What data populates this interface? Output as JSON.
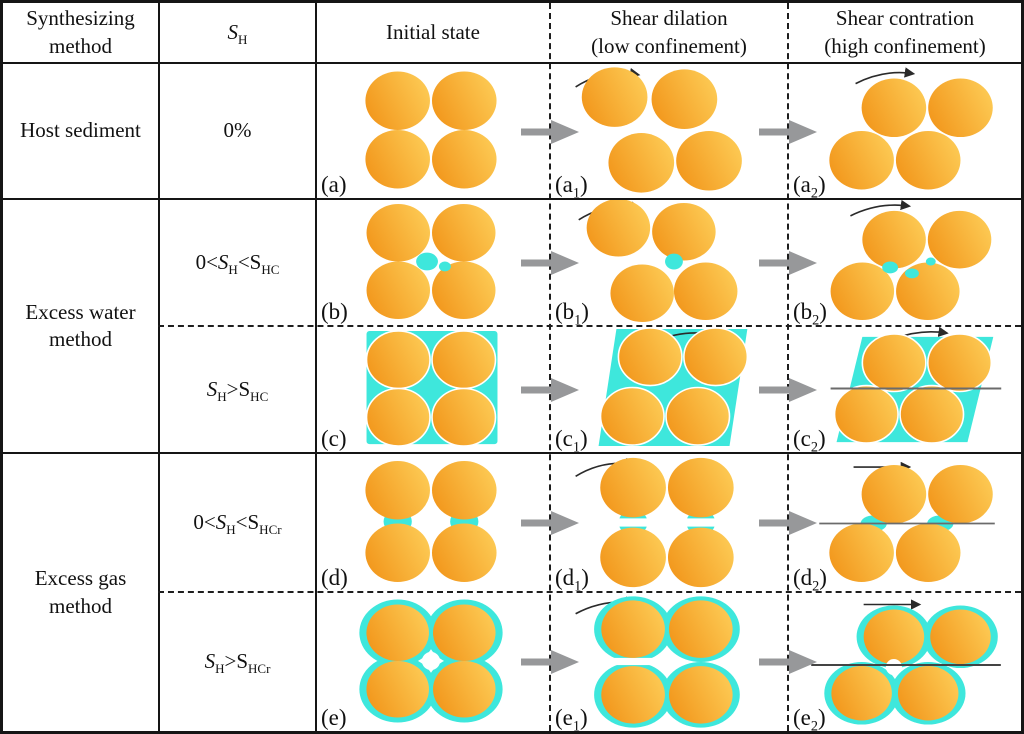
{
  "colors": {
    "particle-dark": "#F2971C",
    "particle-light": "#FDCB55",
    "hydrate": "#3EE7DC",
    "arrow-gray": "#97989A",
    "line": "#151515"
  },
  "columns": [
    {
      "label": "Synthesizing method"
    },
    {
      "label_rich": [
        {
          "t": "S",
          "it": true
        },
        {
          "t": "H",
          "sub": true
        }
      ]
    },
    {
      "label": "Initial state"
    },
    {
      "line1": "Shear dilation",
      "line2": "(low confinement)"
    },
    {
      "line1": "Shear contration",
      "line2": "(high confinement)"
    }
  ],
  "rows": [
    {
      "method": "Host sediment",
      "sh": [
        {
          "t": "0%"
        }
      ],
      "labels": [
        [
          {
            "t": "(a)"
          }
        ],
        [
          {
            "t": "(a"
          },
          {
            "t": "1",
            "sub": true
          },
          {
            "t": ")"
          }
        ],
        [
          {
            "t": "(a"
          },
          {
            "t": "2",
            "sub": true
          },
          {
            "t": ")"
          }
        ]
      ]
    },
    {
      "method": "Excess water method",
      "sh": [
        {
          "t": "0<"
        },
        {
          "t": "S",
          "it": true
        },
        {
          "t": "H",
          "sub": true
        },
        {
          "t": "<"
        },
        {
          "t": "S"
        },
        {
          "t": "HC",
          "sub": true
        }
      ],
      "labels": [
        [
          {
            "t": "(b)"
          }
        ],
        [
          {
            "t": "(b"
          },
          {
            "t": "1",
            "sub": true
          },
          {
            "t": ")"
          }
        ],
        [
          {
            "t": "(b"
          },
          {
            "t": "2",
            "sub": true
          },
          {
            "t": ")"
          }
        ]
      ]
    },
    {
      "sh": [
        {
          "t": "S",
          "it": true
        },
        {
          "t": "H",
          "sub": true
        },
        {
          "t": ">"
        },
        {
          "t": "S"
        },
        {
          "t": "HC",
          "sub": true
        }
      ],
      "labels": [
        [
          {
            "t": "(c)"
          }
        ],
        [
          {
            "t": "(c"
          },
          {
            "t": "1",
            "sub": true
          },
          {
            "t": ")"
          }
        ],
        [
          {
            "t": "(c"
          },
          {
            "t": "2",
            "sub": true
          },
          {
            "t": ")"
          }
        ]
      ]
    },
    {
      "method": "Excess gas method",
      "sh": [
        {
          "t": "0<"
        },
        {
          "t": "S",
          "it": true
        },
        {
          "t": "H",
          "sub": true
        },
        {
          "t": "<"
        },
        {
          "t": "S"
        },
        {
          "t": "HCr",
          "sub": true
        }
      ],
      "labels": [
        [
          {
            "t": "(d)"
          }
        ],
        [
          {
            "t": "(d"
          },
          {
            "t": "1",
            "sub": true
          },
          {
            "t": ")"
          }
        ],
        [
          {
            "t": "(d"
          },
          {
            "t": "2",
            "sub": true
          },
          {
            "t": ")"
          }
        ]
      ]
    },
    {
      "sh": [
        {
          "t": "S",
          "it": true
        },
        {
          "t": "H",
          "sub": true
        },
        {
          "t": ">"
        },
        {
          "t": "S"
        },
        {
          "t": "HCr",
          "sub": true
        }
      ],
      "labels": [
        [
          {
            "t": "(e)"
          }
        ],
        [
          {
            "t": "(e"
          },
          {
            "t": "1",
            "sub": true
          },
          {
            "t": ")"
          }
        ],
        [
          {
            "t": "(e"
          },
          {
            "t": "2",
            "sub": true
          },
          {
            "t": ")"
          }
        ]
      ]
    }
  ]
}
